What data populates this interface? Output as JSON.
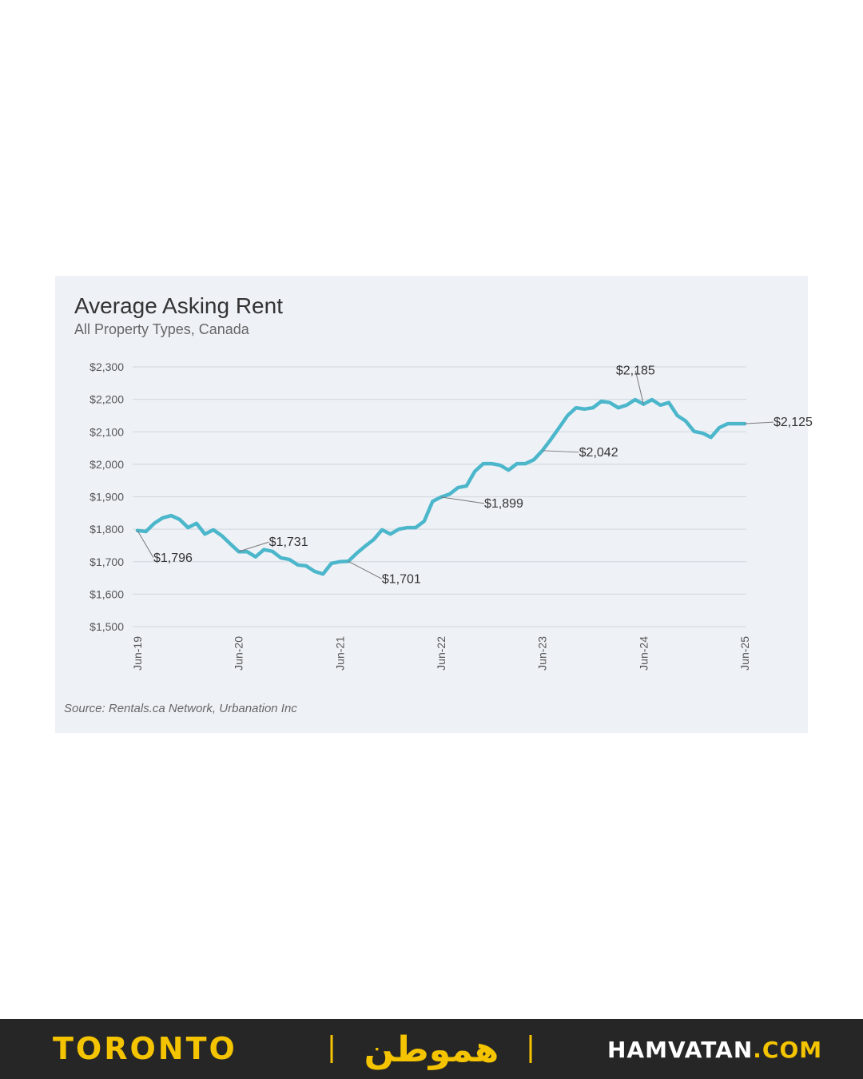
{
  "chart_data": {
    "type": "line",
    "title": "Average Asking Rent",
    "subtitle": "All Property Types, Canada",
    "source": "Source: Rentals.ca Network, Urbanation Inc",
    "categories": [
      "Jun-19",
      null,
      null,
      null,
      null,
      null,
      null,
      null,
      null,
      null,
      null,
      null,
      "Jun-20",
      null,
      null,
      null,
      null,
      null,
      null,
      null,
      null,
      null,
      null,
      null,
      "Jun-21",
      null,
      null,
      null,
      null,
      null,
      null,
      null,
      null,
      null,
      null,
      null,
      "Jun-22",
      null,
      null,
      null,
      null,
      null,
      null,
      null,
      null,
      null,
      null,
      null,
      "Jun-23",
      null,
      null,
      null,
      null,
      null,
      null,
      null,
      null,
      null,
      null,
      null,
      "Jun-24",
      null,
      null,
      null,
      null,
      null,
      null,
      null,
      null,
      null,
      null,
      null,
      "Jun-25"
    ],
    "series": [
      {
        "name": "Average Asking Rent",
        "color": "#4cb6cb",
        "values": [
          1796,
          1793,
          1818,
          1835,
          1842,
          1830,
          1805,
          1818,
          1785,
          1798,
          1780,
          1755,
          1731,
          1731,
          1715,
          1737,
          1732,
          1712,
          1707,
          1690,
          1687,
          1670,
          1662,
          1695,
          1700,
          1701,
          1726,
          1748,
          1768,
          1798,
          1785,
          1800,
          1805,
          1805,
          1825,
          1886,
          1899,
          1908,
          1928,
          1933,
          1978,
          2002,
          2002,
          1997,
          1982,
          2002,
          2002,
          2014,
          2042,
          2076,
          2113,
          2150,
          2174,
          2170,
          2174,
          2194,
          2190,
          2174,
          2182,
          2199,
          2185,
          2199,
          2182,
          2190,
          2150,
          2133,
          2101,
          2096,
          2083,
          2113,
          2125,
          2125,
          2125
        ],
        "value_labels": [
          "$1,796",
          null,
          null,
          null,
          null,
          null,
          null,
          null,
          null,
          null,
          null,
          null,
          "$1,731",
          null,
          null,
          null,
          null,
          null,
          null,
          null,
          null,
          null,
          null,
          null,
          null,
          "$1,701",
          null,
          null,
          null,
          null,
          null,
          null,
          null,
          null,
          null,
          null,
          "$1,899",
          null,
          null,
          null,
          null,
          null,
          null,
          null,
          null,
          null,
          null,
          null,
          "$2,042",
          null,
          null,
          null,
          null,
          null,
          null,
          null,
          null,
          null,
          null,
          null,
          "$2,185",
          null,
          null,
          null,
          null,
          null,
          null,
          null,
          null,
          null,
          null,
          null,
          "$2,125"
        ]
      }
    ],
    "ylim": [
      1500,
      2300
    ],
    "yticks": [
      {
        "value": 1500,
        "label": "$1,500"
      },
      {
        "value": 1600,
        "label": "$1,600"
      },
      {
        "value": 1700,
        "label": "$1,700"
      },
      {
        "value": 1800,
        "label": "$1,800"
      },
      {
        "value": 1900,
        "label": "$1,900"
      },
      {
        "value": 2000,
        "label": "$2,000"
      },
      {
        "value": 2100,
        "label": "$2,100"
      },
      {
        "value": 2200,
        "label": "$2,200"
      },
      {
        "value": 2300,
        "label": "$2,300"
      }
    ],
    "grid": true
  },
  "footer": {
    "city": "TORONTO",
    "logo": "هموطن",
    "site_name": "HAMVATAN",
    "site_tld": ".COM"
  }
}
